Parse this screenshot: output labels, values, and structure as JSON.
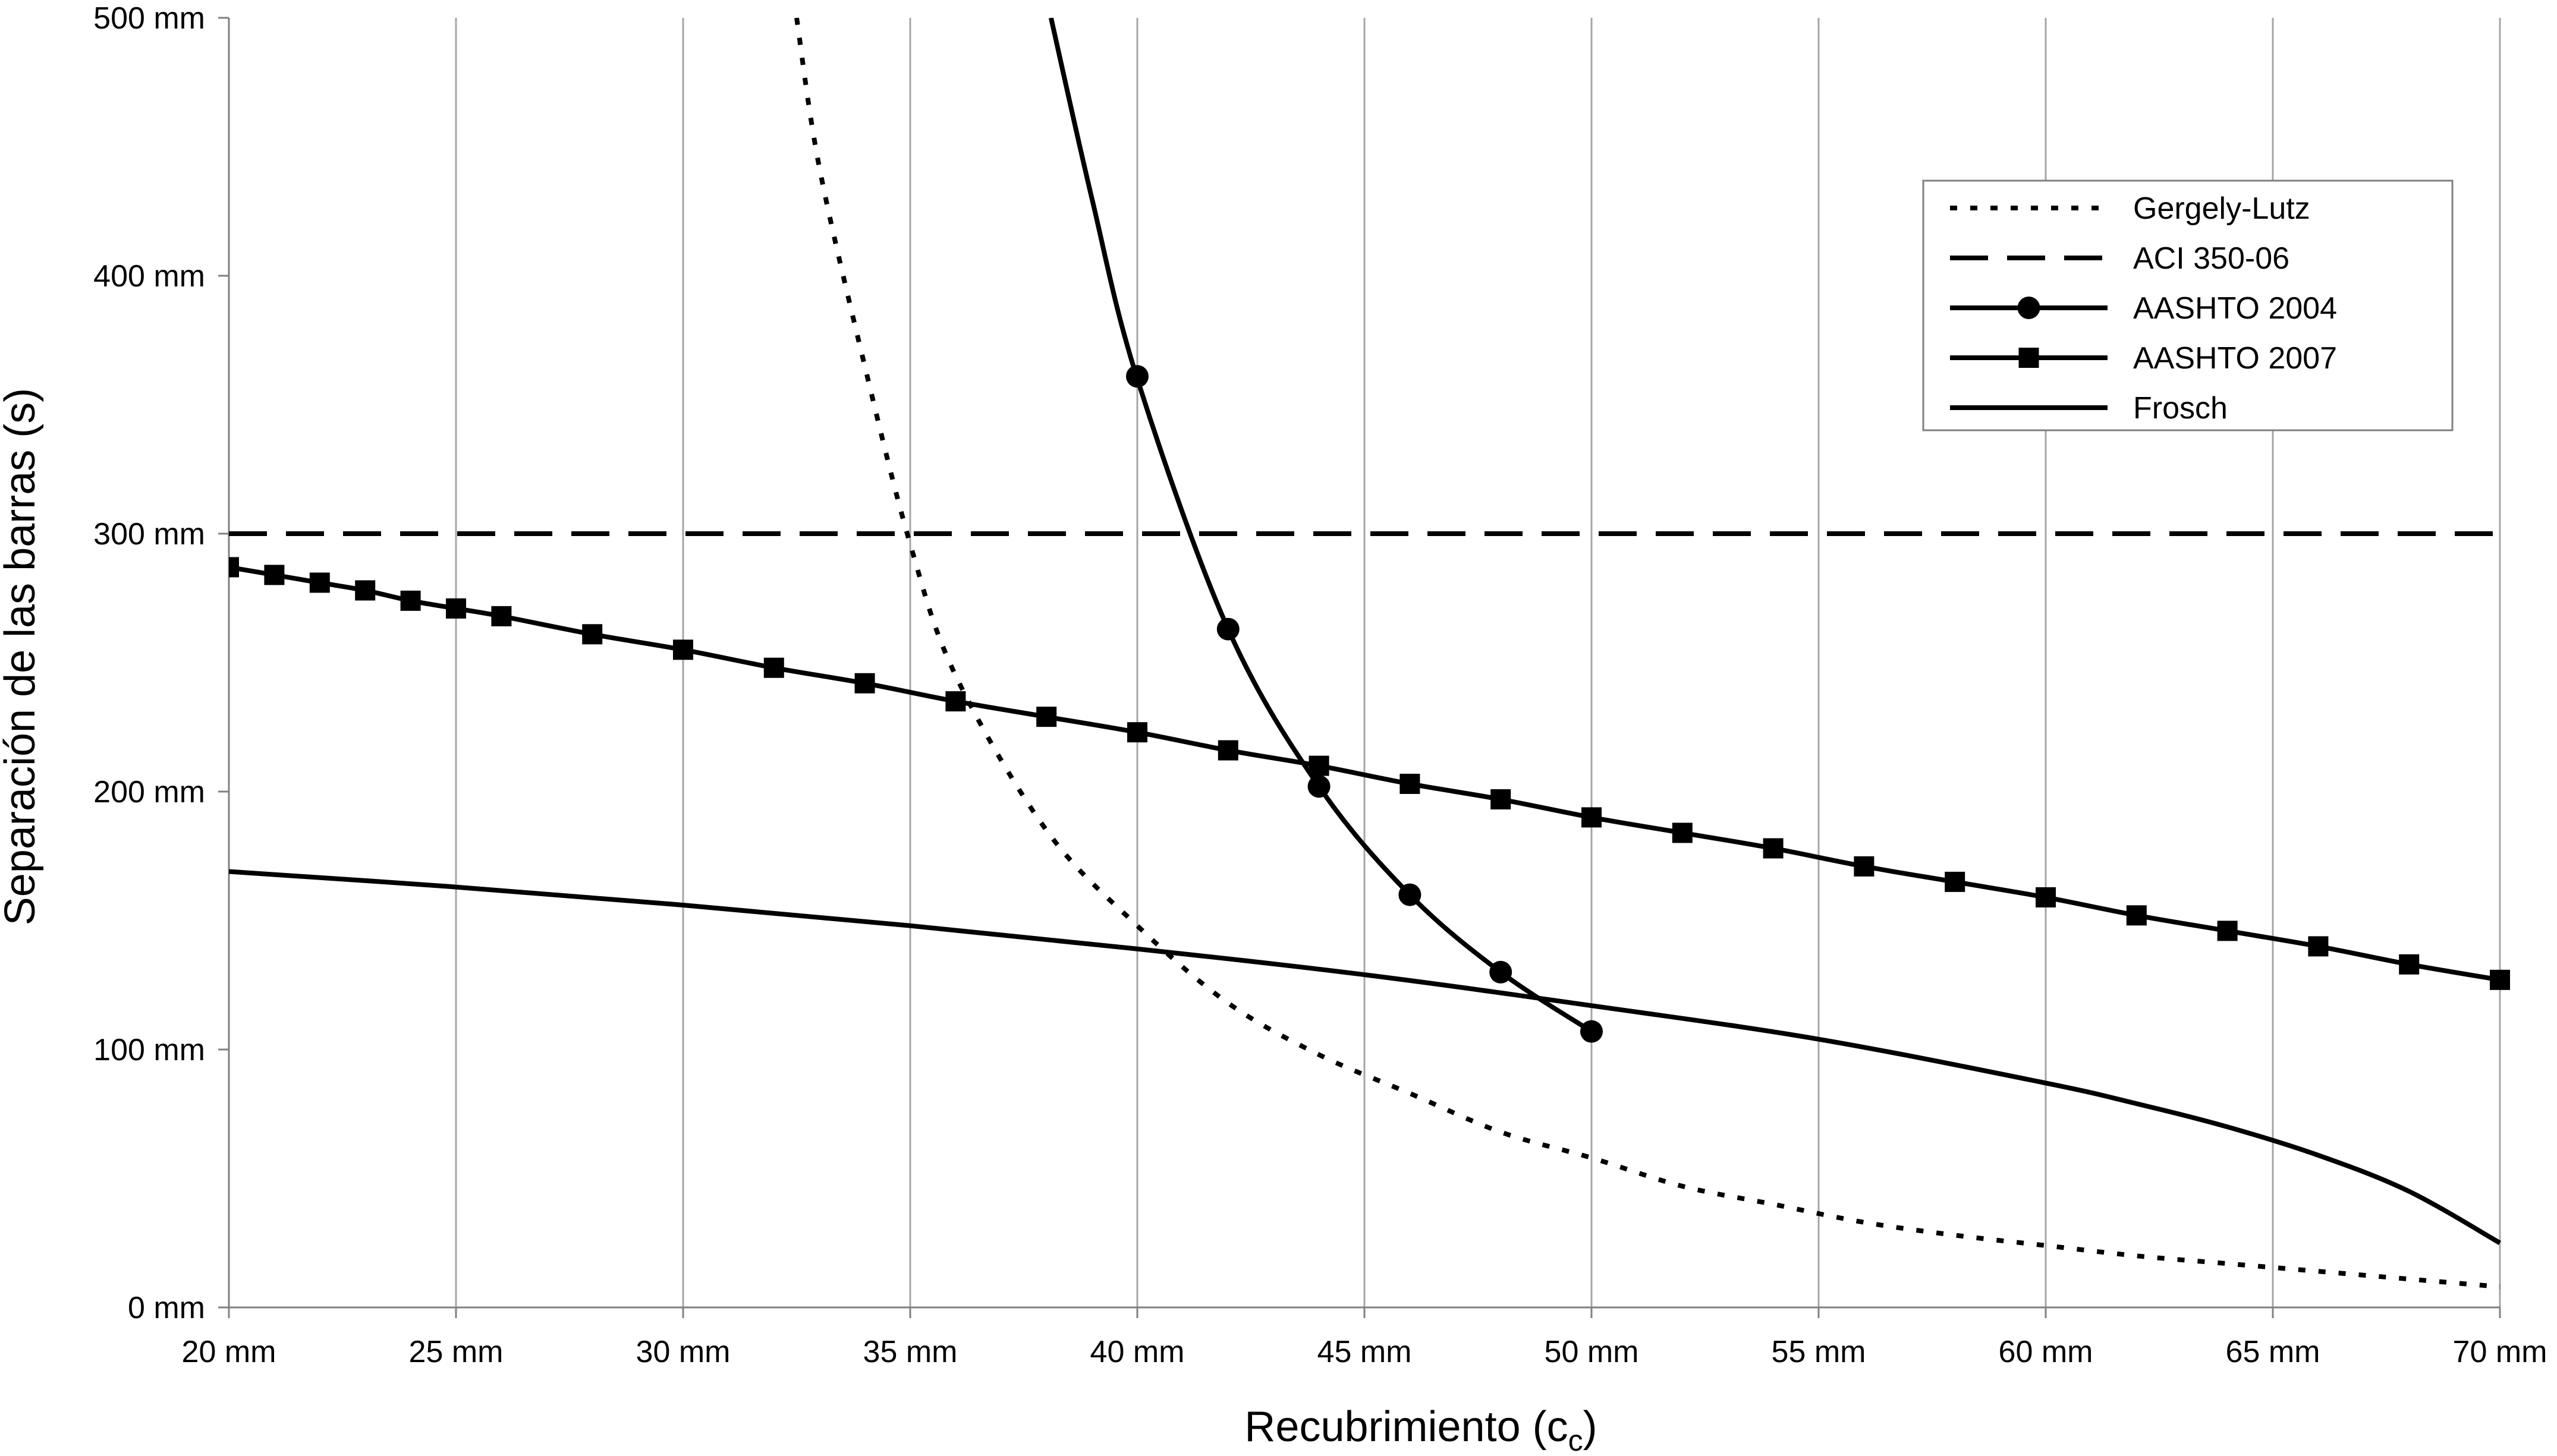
{
  "chart_data": {
    "type": "line",
    "title": "",
    "xlabel": "Recubrimiento (c",
    "xlabel_sub": "c",
    "xlabel_suffix": ")",
    "ylabel": "Separación de las barras (s)",
    "xlim": [
      20,
      70
    ],
    "ylim": [
      0,
      500
    ],
    "x_ticks": [
      20,
      25,
      30,
      35,
      40,
      45,
      50,
      55,
      60,
      65,
      70
    ],
    "x_tick_labels": [
      "20 mm",
      "25 mm",
      "30 mm",
      "35 mm",
      "40 mm",
      "45 mm",
      "50 mm",
      "55 mm",
      "60 mm",
      "65 mm",
      "70 mm"
    ],
    "y_ticks": [
      0,
      100,
      200,
      300,
      400,
      500
    ],
    "y_tick_labels": [
      "0 mm",
      "100 mm",
      "200 mm",
      "300 mm",
      "400 mm",
      "500 mm"
    ],
    "grid": {
      "vertical": true,
      "horizontal": false
    },
    "legend_position": "top-right",
    "series": [
      {
        "name": "Gergely-Lutz",
        "style": "dotted",
        "marker": "none",
        "color": "#000000",
        "x": [
          32.5,
          33,
          34,
          35,
          36,
          38,
          40,
          42,
          44,
          46,
          48,
          50,
          52,
          54,
          56,
          58,
          60,
          62,
          64,
          66,
          68,
          70
        ],
        "y": [
          500,
          442,
          365,
          296,
          245,
          185,
          148,
          118,
          98,
          83,
          68,
          58,
          47,
          40,
          33,
          28,
          24,
          20,
          17,
          14,
          11,
          8
        ]
      },
      {
        "name": "ACI 350-06",
        "style": "dashed",
        "marker": "none",
        "color": "#000000",
        "x": [
          20,
          70
        ],
        "y": [
          300,
          300
        ]
      },
      {
        "name": "AASHTO 2004",
        "style": "solid",
        "marker": "circle",
        "color": "#000000",
        "x": [
          38.1,
          39,
          40,
          42,
          44,
          46,
          48,
          50
        ],
        "y": [
          500,
          430,
          360,
          263,
          202,
          160,
          130,
          107
        ],
        "marker_x": [
          40,
          42,
          44,
          46,
          48,
          50
        ],
        "marker_y": [
          361,
          263,
          202,
          160,
          130,
          107
        ]
      },
      {
        "name": "AASHTO 2007",
        "style": "solid",
        "marker": "square",
        "color": "#000000",
        "x": [
          20,
          21,
          22,
          23,
          24,
          25,
          26,
          28,
          30,
          32,
          34,
          36,
          38,
          40,
          42,
          44,
          46,
          48,
          50,
          52,
          54,
          56,
          58,
          60,
          62,
          64,
          66,
          68,
          70
        ],
        "y": [
          287,
          284,
          281,
          278,
          274,
          271,
          268,
          261,
          255,
          248,
          242,
          235,
          229,
          223,
          216,
          210,
          203,
          197,
          190,
          184,
          178,
          171,
          165,
          159,
          152,
          146,
          140,
          133,
          127
        ]
      },
      {
        "name": "Frosch",
        "style": "solid",
        "marker": "none",
        "color": "#000000",
        "x": [
          20,
          25,
          30,
          35,
          40,
          45,
          50,
          55,
          60,
          62,
          64,
          66,
          68,
          70
        ],
        "y": [
          169,
          163,
          156,
          148,
          139,
          129,
          117,
          104,
          87,
          79,
          70,
          59,
          45,
          25
        ]
      }
    ]
  }
}
